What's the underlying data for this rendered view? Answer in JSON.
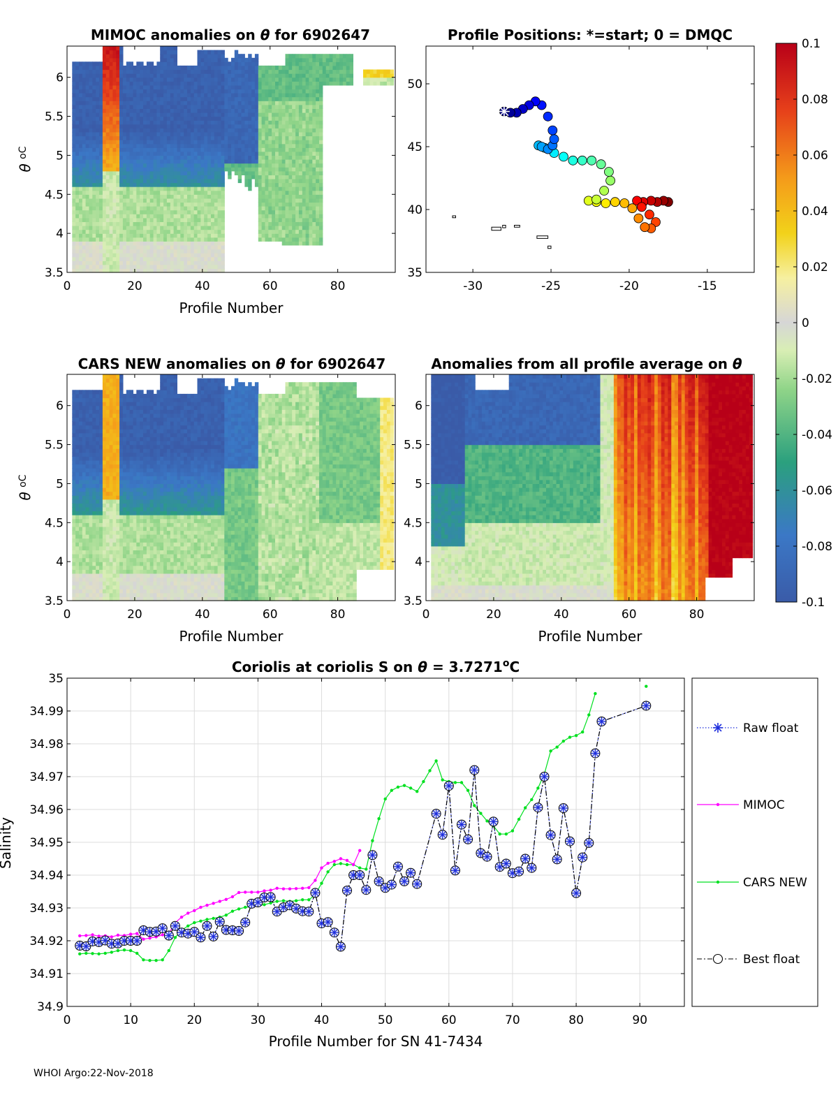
{
  "colors": {
    "raw_float": "#1f2fdc",
    "mimoc": "#ff00ff",
    "cars_new": "#00e020",
    "best_float": "#000000"
  },
  "footer": "WHOI Argo:22-Nov-2018",
  "colorbar": {
    "ticks": [
      "0.1",
      "0.08",
      "0.06",
      "0.04",
      "0.02",
      "0",
      "-0.02",
      "-0.04",
      "-0.06",
      "-0.08",
      "-0.1"
    ],
    "range": [
      -0.1,
      0.1
    ]
  },
  "chart_data": [
    {
      "id": "mimoc",
      "type": "heatmap",
      "title_prefix": "MIMOC anomalies on ",
      "title_symbol": "θ",
      "title_suffix": "  for 6902647",
      "xlabel": "Profile Number",
      "ylabel_symbol": "θ",
      "ylabel_unit": "oC",
      "xlim": [
        0,
        97
      ],
      "ylim": [
        3.5,
        6.4
      ],
      "xticks": [
        "0",
        "20",
        "40",
        "60",
        "80"
      ],
      "yticks": [
        "3.5",
        "4",
        "4.5",
        "5",
        "5.5",
        "6"
      ]
    },
    {
      "id": "positions",
      "type": "scatter",
      "title": "Profile Positions: *=start; 0 = DMQC",
      "xlim": [
        -33,
        -12
      ],
      "ylim": [
        35,
        53
      ],
      "xticks": [
        "-30",
        "-25",
        "-20",
        "-15"
      ],
      "yticks": [
        "35",
        "40",
        "45",
        "50"
      ],
      "lon": [
        -28.0,
        -27.6,
        -27.2,
        -26.8,
        -26.4,
        -26.0,
        -25.6,
        -25.2,
        -24.9,
        -24.8,
        -24.9,
        -25.2,
        -25.6,
        -25.8,
        -25.4,
        -24.8,
        -24.2,
        -23.6,
        -23.0,
        -22.4,
        -21.8,
        -21.3,
        -21.2,
        -21.6,
        -22.1,
        -22.6,
        -22.1,
        -21.5,
        -20.9,
        -20.3,
        -19.8,
        -19.4,
        -19.0,
        -18.6,
        -18.3,
        -18.7,
        -19.2,
        -19.5,
        -19.1,
        -18.6,
        -18.2,
        -17.8,
        -17.5
      ],
      "lat": [
        47.8,
        47.7,
        47.7,
        48.0,
        48.3,
        48.6,
        48.3,
        47.4,
        46.3,
        45.6,
        45.1,
        44.8,
        45.0,
        45.1,
        44.9,
        44.5,
        44.2,
        43.9,
        43.9,
        43.9,
        43.6,
        43.0,
        42.3,
        41.5,
        40.8,
        40.7,
        40.6,
        40.5,
        40.6,
        40.5,
        40.1,
        39.3,
        38.6,
        38.5,
        39.0,
        39.6,
        40.2,
        40.7,
        40.6,
        40.7,
        40.6,
        40.7,
        40.6
      ],
      "land": [
        [
          [
            -31.3,
            39.5
          ],
          [
            -31.1,
            39.5
          ],
          [
            -31.1,
            39.35
          ],
          [
            -31.3,
            39.35
          ]
        ],
        [
          [
            -28.8,
            38.6
          ],
          [
            -28.2,
            38.6
          ],
          [
            -28.2,
            38.35
          ],
          [
            -28.8,
            38.35
          ]
        ],
        [
          [
            -28.1,
            38.75
          ],
          [
            -27.9,
            38.75
          ],
          [
            -27.9,
            38.55
          ],
          [
            -28.1,
            38.55
          ]
        ],
        [
          [
            -27.35,
            38.75
          ],
          [
            -27.0,
            38.75
          ],
          [
            -27.0,
            38.6
          ],
          [
            -27.35,
            38.6
          ]
        ],
        [
          [
            -25.9,
            37.9
          ],
          [
            -25.2,
            37.9
          ],
          [
            -25.2,
            37.7
          ],
          [
            -25.9,
            37.7
          ]
        ],
        [
          [
            -25.2,
            37.1
          ],
          [
            -25.0,
            37.1
          ],
          [
            -25.0,
            36.9
          ],
          [
            -25.2,
            36.9
          ]
        ]
      ]
    },
    {
      "id": "cars",
      "type": "heatmap",
      "title_prefix": "CARS NEW anomalies on ",
      "title_symbol": "θ",
      "title_suffix": " for 6902647",
      "xlabel": "Profile Number",
      "ylabel_symbol": "θ",
      "ylabel_unit": "oC",
      "xlim": [
        0,
        97
      ],
      "ylim": [
        3.5,
        6.4
      ],
      "xticks": [
        "0",
        "20",
        "40",
        "60",
        "80"
      ],
      "yticks": [
        "3.5",
        "4",
        "4.5",
        "5",
        "5.5",
        "6"
      ]
    },
    {
      "id": "allavg",
      "type": "heatmap",
      "title_prefix": "Anomalies from all profile average on ",
      "title_symbol": "θ",
      "title_suffix": "",
      "xlabel": "Profile Number",
      "xlim": [
        0,
        97
      ],
      "ylim": [
        3.5,
        6.4
      ],
      "xticks": [
        "0",
        "20",
        "40",
        "60",
        "80"
      ],
      "yticks": [
        "3.5",
        "4",
        "4.5",
        "5",
        "5.5",
        "6"
      ]
    },
    {
      "id": "salinity",
      "type": "line",
      "title_prefix": "Coriolis at coriolis S on ",
      "title_symbol": "θ",
      "title_value": " = 3.7271",
      "title_sup": "o",
      "title_unit": "C",
      "xlabel": "Profile Number for SN 41-7434",
      "ylabel": "Salinity",
      "xlim": [
        0,
        97
      ],
      "ylim": [
        34.9,
        35.0
      ],
      "xticks": [
        "0",
        "10",
        "20",
        "30",
        "40",
        "50",
        "60",
        "70",
        "80",
        "90"
      ],
      "yticks": [
        "34.9",
        "34.91",
        "34.92",
        "34.93",
        "34.94",
        "34.95",
        "34.96",
        "34.97",
        "34.98",
        "34.99",
        "35"
      ],
      "legend": [
        "Raw float",
        "MIMOC",
        "CARS NEW",
        "Best float"
      ],
      "series": [
        {
          "name": "MIMOC",
          "x": [
            2,
            3,
            4,
            5,
            6,
            7,
            8,
            9,
            10,
            11,
            12,
            13,
            14,
            15,
            16,
            17,
            18,
            19,
            20,
            21,
            22,
            23,
            24,
            25,
            26,
            27,
            28,
            29,
            30,
            31,
            32,
            33,
            34,
            35,
            36,
            37,
            38,
            39,
            40,
            41,
            42,
            43,
            44,
            45,
            46
          ],
          "y": [
            34.9215,
            34.9216,
            34.9218,
            34.9214,
            34.9215,
            34.9212,
            34.9217,
            34.9216,
            34.922,
            34.9222,
            34.9205,
            34.9208,
            34.9212,
            34.9218,
            34.9222,
            34.9255,
            34.9272,
            34.9284,
            34.9292,
            34.9302,
            34.9308,
            34.9314,
            34.932,
            34.9326,
            34.9334,
            34.9347,
            34.9348,
            34.9348,
            34.9348,
            34.9352,
            34.9354,
            34.936,
            34.9358,
            34.9358,
            34.9359,
            34.936,
            34.9362,
            34.9384,
            34.9422,
            34.9436,
            34.9442,
            34.945,
            34.9445,
            34.9432,
            34.9475
          ]
        },
        {
          "name": "CARS NEW",
          "x": [
            2,
            3,
            4,
            5,
            6,
            7,
            8,
            9,
            10,
            11,
            12,
            13,
            14,
            15,
            16,
            17,
            18,
            19,
            20,
            21,
            22,
            23,
            24,
            25,
            26,
            27,
            28,
            29,
            30,
            31,
            32,
            33,
            34,
            35,
            36,
            37,
            38,
            39,
            40,
            41,
            42,
            43,
            44,
            45,
            46,
            47,
            48,
            49,
            50,
            51,
            52,
            53,
            54,
            55,
            56,
            57,
            58,
            59,
            60,
            61,
            62,
            63,
            64,
            65,
            66,
            67,
            68,
            69,
            70,
            71,
            72,
            73,
            74,
            75,
            76,
            77,
            78,
            79,
            80,
            81,
            82,
            83,
            91
          ],
          "y": [
            34.916,
            34.9162,
            34.9161,
            34.916,
            34.9162,
            34.9165,
            34.917,
            34.9172,
            34.917,
            34.9162,
            34.9142,
            34.914,
            34.914,
            34.9142,
            34.917,
            34.921,
            34.9232,
            34.9245,
            34.9255,
            34.926,
            34.9265,
            34.9268,
            34.9272,
            34.9278,
            34.929,
            34.9297,
            34.9302,
            34.9305,
            34.9307,
            34.931,
            34.9315,
            34.932,
            34.9322,
            34.932,
            34.9322,
            34.9325,
            34.9325,
            34.934,
            34.9375,
            34.941,
            34.9432,
            34.9435,
            34.9432,
            34.9432,
            34.9422,
            34.9418,
            34.9505,
            34.9572,
            34.9632,
            34.9658,
            34.9668,
            34.9673,
            34.9665,
            34.9655,
            34.9685,
            34.9718,
            34.9748,
            34.969,
            34.9685,
            34.9682,
            34.9682,
            34.9658,
            34.9612,
            34.9588,
            34.9565,
            34.955,
            34.9525,
            34.9525,
            34.9535,
            34.957,
            34.9605,
            34.963,
            34.9665,
            34.9708,
            34.9778,
            34.979,
            34.9808,
            34.982,
            34.9825,
            34.9836,
            34.9888,
            34.9953,
            34.9975
          ]
        },
        {
          "name": "Best float",
          "x": [
            2,
            3,
            4,
            5,
            6,
            7,
            8,
            9,
            10,
            11,
            12,
            13,
            14,
            15,
            16,
            17,
            18,
            19,
            20,
            21,
            22,
            23,
            24,
            25,
            26,
            27,
            28,
            29,
            30,
            31,
            32,
            33,
            34,
            35,
            36,
            37,
            38,
            39,
            40,
            41,
            42,
            43,
            44,
            45,
            46,
            47,
            48,
            49,
            50,
            51,
            52,
            53,
            54,
            55,
            58,
            59,
            60,
            61,
            62,
            63,
            64,
            65,
            66,
            67,
            68,
            69,
            70,
            71,
            72,
            73,
            74,
            75,
            76,
            77,
            78,
            79,
            80,
            81,
            82,
            83,
            84,
            91
          ],
          "y": [
            34.9185,
            34.9183,
            34.9198,
            34.9196,
            34.9201,
            34.9191,
            34.9192,
            34.92,
            34.92,
            34.92,
            34.9232,
            34.9227,
            34.9228,
            34.9238,
            34.9216,
            34.9245,
            34.9225,
            34.9222,
            34.9227,
            34.921,
            34.9245,
            34.9213,
            34.9258,
            34.9233,
            34.9232,
            34.923,
            34.9256,
            34.9313,
            34.9317,
            34.9332,
            34.9333,
            34.9289,
            34.9302,
            34.9308,
            34.9298,
            34.929,
            34.9289,
            34.9346,
            34.9253,
            34.9257,
            34.9225,
            34.9182,
            34.9353,
            34.94,
            34.94,
            34.9355,
            34.9461,
            34.9381,
            34.9361,
            34.9371,
            34.9426,
            34.9381,
            34.9407,
            34.9373,
            34.9587,
            34.9523,
            34.9672,
            34.9414,
            34.9554,
            34.9509,
            34.972,
            34.9467,
            34.9456,
            34.9563,
            34.9425,
            34.9435,
            34.9406,
            34.9411,
            34.945,
            34.9422,
            34.9606,
            34.97,
            34.9522,
            34.9448,
            34.9604,
            34.9503,
            34.9345,
            34.9454,
            34.9498,
            34.9771,
            34.9868,
            34.9916
          ]
        }
      ]
    }
  ]
}
